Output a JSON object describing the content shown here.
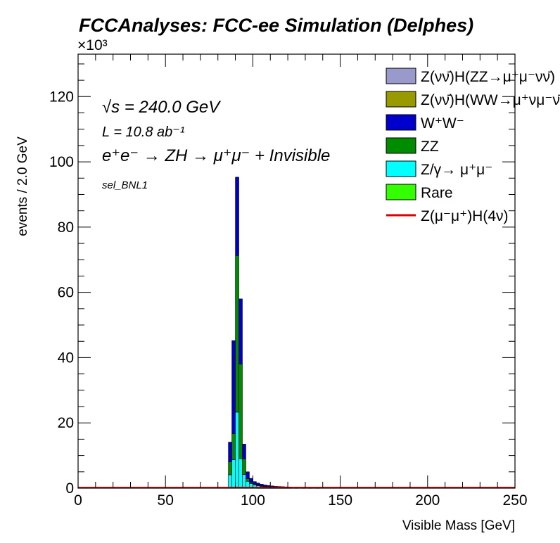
{
  "chart_data": {
    "type": "bar",
    "title": "FCCAnalyses: FCC-ee Simulation (Delphes)",
    "xlabel": "Visible Mass [GeV]",
    "ylabel": "events / 2.0 GeV",
    "y_multiplier": "×10³",
    "xlim": [
      0,
      250
    ],
    "ylim": [
      0,
      133
    ],
    "x_ticks": [
      "0",
      "50",
      "100",
      "150",
      "200",
      "250"
    ],
    "y_ticks": [
      "0",
      "20",
      "40",
      "60",
      "80",
      "100",
      "120"
    ],
    "bin_width": 2,
    "stacked": true,
    "annotations": {
      "sqrt_s": "√s = 240.0 GeV",
      "lumi": "L = 10.8 ab⁻¹",
      "process": "e⁺e⁻ → ZH → μ⁺μ⁻ + Invisible",
      "selection": "sel_BNL1"
    },
    "bin_lows": [
      86,
      88,
      90,
      92,
      94,
      96,
      98,
      100,
      102,
      104,
      106,
      108,
      110,
      112,
      114,
      116,
      118,
      120,
      124,
      128,
      132,
      136
    ],
    "series": [
      {
        "name": "Rare",
        "color": "#33ff00",
        "values": [
          0.1,
          0.2,
          0.3,
          0.3,
          0.2,
          0.1,
          0.1,
          0.1,
          0.05,
          0.05,
          0.05,
          0.05,
          0.05,
          0.05,
          0.05,
          0.05,
          0.05,
          0.05,
          0.05,
          0.05,
          0.05,
          0.05
        ]
      },
      {
        "name": "Z/γ→ μ⁺μ⁻",
        "color": "#00ffff",
        "values": [
          4.0,
          8.5,
          23.0,
          8.7,
          4.0,
          2.0,
          1.3,
          0.9,
          0.7,
          0.5,
          0.4,
          0.3,
          0.25,
          0.2,
          0.18,
          0.15,
          0.12,
          0.1,
          0.08,
          0.06,
          0.05,
          0.04
        ]
      },
      {
        "name": "ZZ",
        "color": "#008c00",
        "values": [
          4.0,
          8.0,
          48.0,
          29.0,
          4.8,
          0.8,
          0.4,
          0.2,
          0.2,
          0.15,
          0.12,
          0.1,
          0.08,
          0.06,
          0.05,
          0.05,
          0.04,
          0.03,
          0.03,
          0.02,
          0.02,
          0.02
        ]
      },
      {
        "name": "W⁺W⁻",
        "color": "#0000cc",
        "values": [
          6.0,
          28.5,
          24.0,
          20.0,
          4.5,
          2.1,
          1.2,
          0.8,
          0.6,
          0.5,
          0.4,
          0.35,
          0.3,
          0.25,
          0.22,
          0.2,
          0.18,
          0.15,
          0.12,
          0.1,
          0.08,
          0.06
        ]
      },
      {
        "name": "Z(νν̄)H(WW→μ⁺νμ⁻ν̄)",
        "color": "#999900",
        "values": [
          0,
          0,
          0,
          0,
          0,
          0,
          0,
          0,
          0,
          0,
          0,
          0,
          0,
          0,
          0,
          0,
          0,
          0,
          0,
          0,
          0,
          0
        ]
      },
      {
        "name": "Z(νν̄)H(ZZ→μ⁺μ⁻νν̄)",
        "color": "#9999cc",
        "values": [
          0,
          0,
          0,
          0,
          0,
          0,
          0,
          0,
          0,
          0,
          0,
          0,
          0,
          0,
          0,
          0,
          0,
          0,
          0,
          0,
          0,
          0
        ]
      }
    ],
    "line_series": {
      "name": "Z(μ⁻μ⁺)H(4ν)",
      "color": "#dd0000",
      "value": 0.2
    },
    "legend": {
      "placement": "top-right",
      "items": [
        {
          "label": "Z(νν̄)H(ZZ→μ⁺μ⁻νν̄)",
          "color": "#9999cc",
          "kind": "box"
        },
        {
          "label": "Z(νν̄)H(WW→μ⁺νμ⁻ν̄)",
          "color": "#999900",
          "kind": "box"
        },
        {
          "label": "W⁺W⁻",
          "color": "#0000cc",
          "kind": "box"
        },
        {
          "label": "ZZ",
          "color": "#008c00",
          "kind": "box"
        },
        {
          "label": "Z/γ→ μ⁺μ⁻",
          "color": "#00ffff",
          "kind": "box"
        },
        {
          "label": "Rare",
          "color": "#33ff00",
          "kind": "box"
        },
        {
          "label": "Z(μ⁻μ⁺)H(4ν)",
          "color": "#dd0000",
          "kind": "line"
        }
      ]
    }
  }
}
